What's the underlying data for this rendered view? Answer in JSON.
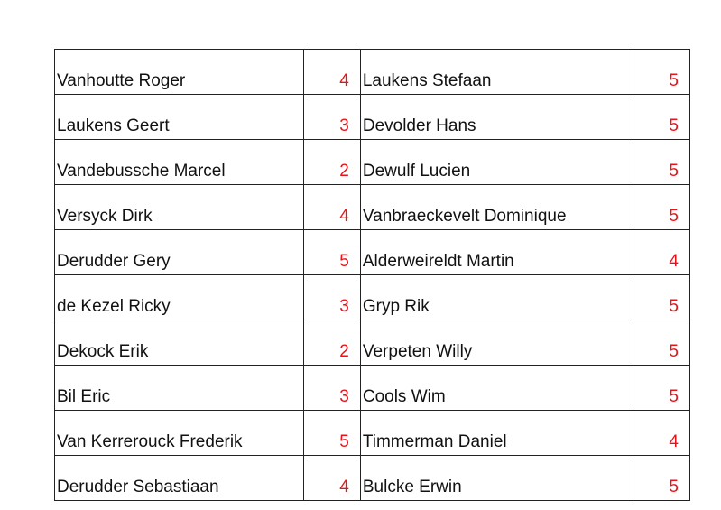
{
  "colors": {
    "score": "#e8141a"
  },
  "rows": [
    {
      "left_name": "Vanhoutte Roger",
      "left_score": "4",
      "right_name": "Laukens Stefaan",
      "right_score": "5"
    },
    {
      "left_name": "Laukens Geert",
      "left_score": "3",
      "right_name": "Devolder Hans",
      "right_score": "5"
    },
    {
      "left_name": "Vandebussche Marcel",
      "left_score": "2",
      "right_name": "Dewulf Lucien",
      "right_score": "5"
    },
    {
      "left_name": "Versyck Dirk",
      "left_score": "4",
      "right_name": "Vanbraeckevelt Dominique",
      "right_score": "5"
    },
    {
      "left_name": "Derudder Gery",
      "left_score": "5",
      "right_name": "Alderweireldt Martin",
      "right_score": "4"
    },
    {
      "left_name": "de Kezel Ricky",
      "left_score": "3",
      "right_name": "Gryp Rik",
      "right_score": "5"
    },
    {
      "left_name": "Dekock Erik",
      "left_score": "2",
      "right_name": "Verpeten Willy",
      "right_score": "5"
    },
    {
      "left_name": "Bil Eric",
      "left_score": "3",
      "right_name": "Cools Wim",
      "right_score": "5"
    },
    {
      "left_name": "Van Kerrerouck Frederik",
      "left_score": "5",
      "right_name": "Timmerman Daniel",
      "right_score": "4"
    },
    {
      "left_name": "Derudder Sebastiaan",
      "left_score": "4",
      "right_name": "Bulcke Erwin",
      "right_score": "5"
    }
  ]
}
